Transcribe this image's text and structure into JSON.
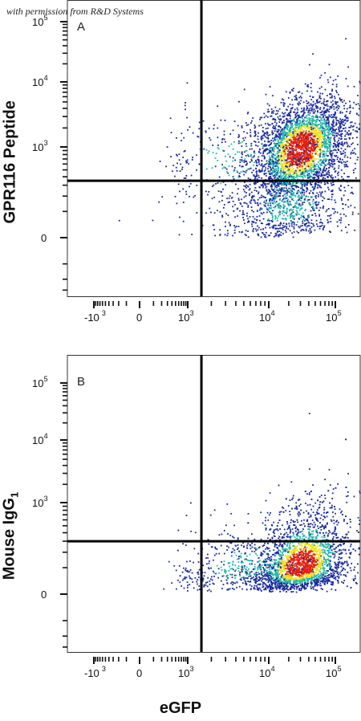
{
  "attribution": "with permission from R&D Systems",
  "x_axis_label": "eGFP",
  "colors": {
    "quadrant_line": "#000000",
    "density_low": "#1a2a9a",
    "density_mid": "#23b8a8",
    "density_high": "#f0e020",
    "density_peak": "#e02010"
  },
  "chart_data": [
    {
      "type": "scatter",
      "panel_label": "A",
      "ylabel": "GPR116 Peptide",
      "xlabel": "eGFP",
      "x_scale": "biexponential",
      "y_scale": "biexponential",
      "x_ticks": [
        "-10^3",
        "0",
        "10^3",
        "10^4",
        "10^5"
      ],
      "y_ticks": [
        "0",
        "10^3",
        "10^4",
        "10^5"
      ],
      "quadrant_gate": {
        "x": 1500,
        "y": 350
      },
      "populations": [
        {
          "center": {
            "x": 30000,
            "y": 1000
          },
          "spread_decades": {
            "x": 0.35,
            "y": 0.35
          },
          "events": 3200
        },
        {
          "center": {
            "x": 20000,
            "y": 150
          },
          "spread_decades": {
            "x": 0.45,
            "y": 0.6
          },
          "events": 900
        },
        {
          "center": {
            "x": 3000,
            "y": 700
          },
          "spread_decades": {
            "x": 0.5,
            "y": 0.4
          },
          "events": 250
        }
      ],
      "points": [
        {
          "x": 500,
          "y": 550
        },
        {
          "x": 700,
          "y": 520
        },
        {
          "x": -200,
          "y": 60
        },
        {
          "x": 600,
          "y": 10
        },
        {
          "x": 80000,
          "y": 20
        },
        {
          "x": 45000,
          "y": 30000
        }
      ]
    },
    {
      "type": "scatter",
      "panel_label": "B",
      "ylabel": "Mouse IgG1",
      "xlabel": "eGFP",
      "x_scale": "biexponential",
      "y_scale": "biexponential",
      "x_ticks": [
        "-10^3",
        "0",
        "10^3",
        "10^4",
        "10^5"
      ],
      "y_ticks": [
        "0",
        "10^3",
        "10^4",
        "10^5"
      ],
      "quadrant_gate": {
        "x": 1500,
        "y": 300
      },
      "populations": [
        {
          "center": {
            "x": 30000,
            "y": 120
          },
          "spread_decades": {
            "x": 0.35,
            "y": 0.4
          },
          "events": 3000
        },
        {
          "center": {
            "x": 5000,
            "y": 110
          },
          "spread_decades": {
            "x": 0.45,
            "y": 0.4
          },
          "events": 450
        }
      ],
      "points": [
        {
          "x": 40000,
          "y": 30000
        },
        {
          "x": 40000,
          "y": 1500
        },
        {
          "x": 35000,
          "y": 1000
        },
        {
          "x": 45000,
          "y": 2000
        },
        {
          "x": 900,
          "y": 700
        },
        {
          "x": 500,
          "y": 90
        }
      ]
    }
  ]
}
